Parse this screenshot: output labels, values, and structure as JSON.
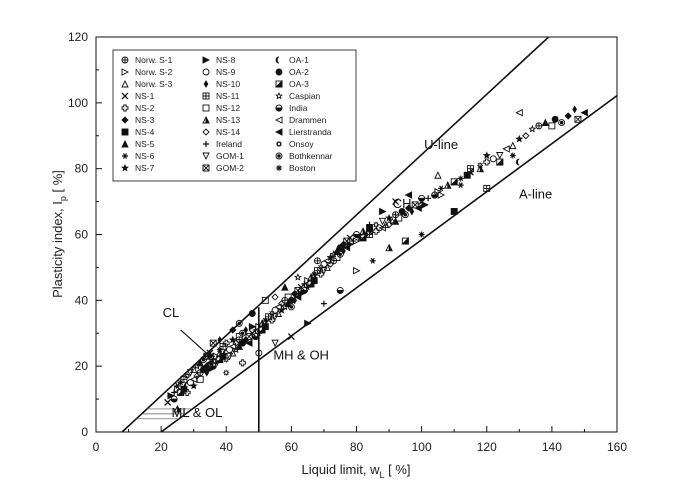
{
  "chart_data": {
    "type": "scatter",
    "title": "",
    "xlabel": {
      "main": "Liquid limit, w",
      "sub": "L",
      "unit": " [ %]"
    },
    "ylabel": {
      "main": "Plasticity index, I",
      "sub": "p",
      "unit": " [ %]"
    },
    "xlim": [
      0,
      160
    ],
    "ylim": [
      0,
      120
    ],
    "x_ticks": [
      "0",
      "20",
      "40",
      "60",
      "80",
      "100",
      "120",
      "140",
      "160"
    ],
    "y_ticks": [
      "0",
      "20",
      "40",
      "60",
      "80",
      "100",
      "120"
    ],
    "grid": false,
    "legend_position": "top-left",
    "reference_lines": [
      {
        "name": "U-line",
        "points": [
          [
            8,
            0
          ],
          [
            139,
            120
          ]
        ]
      },
      {
        "name": "A-line",
        "points": [
          [
            20,
            0
          ],
          [
            160,
            102.2
          ]
        ]
      },
      {
        "name": "wL = 50",
        "points": [
          [
            50,
            0
          ],
          [
            50,
            37.9
          ]
        ]
      }
    ],
    "annotations": [
      {
        "text": "U-line",
        "x": 106,
        "y": 86
      },
      {
        "text": "A-line",
        "x": 135,
        "y": 71
      },
      {
        "text": "CH",
        "x": 94,
        "y": 68
      },
      {
        "text": "CL",
        "x": 23,
        "y": 35
      },
      {
        "text": "MH & OH",
        "x": 63,
        "y": 22
      },
      {
        "text": "ML & OL",
        "x": 31,
        "y": 4.5
      }
    ],
    "cl_pointer": {
      "from": [
        26,
        31
      ],
      "to": [
        35,
        23
      ]
    },
    "legend_columns": [
      [
        "Norw. S-1",
        "Norw. S-2",
        "Norw. S-3",
        "NS-1",
        "NS-2",
        "NS-3",
        "NS-4",
        "NS-5",
        "NS-6",
        "NS-7"
      ],
      [
        "NS-8",
        "NS-9",
        "NS-10",
        "NS-11",
        "NS-12",
        "NS-13",
        "NS-14",
        "Ireland",
        "GOM-1",
        "GOM-2"
      ],
      [
        "OA-1",
        "OA-2",
        "OA-3",
        "Caspian",
        "India",
        "Drammen",
        "Lierstranda",
        "Onsoy",
        "Bothkennar",
        "Boston"
      ]
    ],
    "legend_markers": [
      [
        "circle-cross",
        "triangle-right-open",
        "triangle-up-open",
        "x",
        "plus-open",
        "diamond-filled",
        "square-filled",
        "triangle-up-filled",
        "star-six",
        "star-filled"
      ],
      [
        "triangle-right-filled",
        "circle-open",
        "diamond-small",
        "square-grid",
        "square-open",
        "triangle-half",
        "diamond-open",
        "plus",
        "triangle-down-open",
        "square-x"
      ],
      [
        "crescent",
        "circle-filled",
        "square-half",
        "star-open",
        "circle-half",
        "triangle-left-open",
        "triangle-left-filled",
        "sun",
        "circle-dot",
        "asterisk"
      ]
    ],
    "series": [
      {
        "name": "Observations",
        "points": [
          [
            22,
            9
          ],
          [
            23,
            11
          ],
          [
            24,
            12
          ],
          [
            24,
            10
          ],
          [
            25,
            13
          ],
          [
            25,
            14
          ],
          [
            25,
            7
          ],
          [
            26,
            12
          ],
          [
            26,
            15
          ],
          [
            27,
            13
          ],
          [
            27,
            16
          ],
          [
            28,
            14
          ],
          [
            28,
            17
          ],
          [
            28,
            12
          ],
          [
            29,
            15
          ],
          [
            29,
            18
          ],
          [
            30,
            16
          ],
          [
            30,
            19
          ],
          [
            30,
            14
          ],
          [
            31,
            17
          ],
          [
            31,
            20
          ],
          [
            32,
            18
          ],
          [
            32,
            21
          ],
          [
            32,
            16
          ],
          [
            33,
            19
          ],
          [
            33,
            22
          ],
          [
            34,
            20
          ],
          [
            34,
            18
          ],
          [
            34,
            23
          ],
          [
            35,
            21
          ],
          [
            35,
            24
          ],
          [
            35,
            19
          ],
          [
            36,
            22
          ],
          [
            36,
            20
          ],
          [
            37,
            23
          ],
          [
            37,
            21
          ],
          [
            38,
            24
          ],
          [
            38,
            22
          ],
          [
            38,
            25
          ],
          [
            39,
            23
          ],
          [
            39,
            26
          ],
          [
            40,
            24
          ],
          [
            40,
            22
          ],
          [
            40,
            27
          ],
          [
            41,
            25
          ],
          [
            41,
            23
          ],
          [
            42,
            26
          ],
          [
            42,
            24
          ],
          [
            42,
            28
          ],
          [
            43,
            27
          ],
          [
            43,
            25
          ],
          [
            44,
            28
          ],
          [
            44,
            26
          ],
          [
            44,
            29
          ],
          [
            45,
            27
          ],
          [
            45,
            30
          ],
          [
            46,
            28
          ],
          [
            46,
            31
          ],
          [
            47,
            29
          ],
          [
            47,
            27
          ],
          [
            48,
            30
          ],
          [
            48,
            32
          ],
          [
            49,
            31
          ],
          [
            49,
            29
          ],
          [
            50,
            32
          ],
          [
            50,
            30
          ],
          [
            51,
            33
          ],
          [
            51,
            31
          ],
          [
            52,
            34
          ],
          [
            52,
            32
          ],
          [
            53,
            35
          ],
          [
            53,
            33
          ],
          [
            54,
            36
          ],
          [
            54,
            34
          ],
          [
            55,
            37
          ],
          [
            55,
            35
          ],
          [
            56,
            38
          ],
          [
            56,
            36
          ],
          [
            57,
            37
          ],
          [
            57,
            39
          ],
          [
            58,
            38
          ],
          [
            58,
            40
          ],
          [
            59,
            39
          ],
          [
            59,
            41
          ],
          [
            60,
            40
          ],
          [
            60,
            38
          ],
          [
            61,
            42
          ],
          [
            61,
            40
          ],
          [
            62,
            43
          ],
          [
            62,
            41
          ],
          [
            63,
            44
          ],
          [
            63,
            42
          ],
          [
            64,
            45
          ],
          [
            64,
            43
          ],
          [
            65,
            46
          ],
          [
            65,
            44
          ],
          [
            66,
            47
          ],
          [
            66,
            45
          ],
          [
            67,
            48
          ],
          [
            67,
            46
          ],
          [
            68,
            49
          ],
          [
            68,
            47
          ],
          [
            69,
            50
          ],
          [
            69,
            48
          ],
          [
            70,
            51
          ],
          [
            70,
            49
          ],
          [
            71,
            52
          ],
          [
            71,
            50
          ],
          [
            72,
            53
          ],
          [
            72,
            51
          ],
          [
            73,
            54
          ],
          [
            73,
            52
          ],
          [
            74,
            55
          ],
          [
            74,
            53
          ],
          [
            75,
            56
          ],
          [
            75,
            54
          ],
          [
            76,
            57
          ],
          [
            76,
            55
          ],
          [
            77,
            58
          ],
          [
            77,
            56
          ],
          [
            78,
            59
          ],
          [
            78,
            57
          ],
          [
            79,
            58
          ],
          [
            80,
            60
          ],
          [
            80,
            58
          ],
          [
            81,
            59
          ],
          [
            82,
            61
          ],
          [
            82,
            59
          ],
          [
            83,
            60
          ],
          [
            84,
            62
          ],
          [
            84,
            60
          ],
          [
            85,
            61
          ],
          [
            86,
            63
          ],
          [
            86,
            61
          ],
          [
            87,
            62
          ],
          [
            88,
            64
          ],
          [
            88,
            62
          ],
          [
            89,
            63
          ],
          [
            90,
            65
          ],
          [
            90,
            63
          ],
          [
            91,
            64
          ],
          [
            92,
            66
          ],
          [
            92,
            64
          ],
          [
            93,
            65
          ],
          [
            94,
            67
          ],
          [
            95,
            66
          ],
          [
            96,
            68
          ],
          [
            97,
            67
          ],
          [
            98,
            69
          ],
          [
            99,
            68
          ],
          [
            100,
            70
          ],
          [
            101,
            69
          ],
          [
            102,
            71
          ],
          [
            104,
            72
          ],
          [
            105,
            73
          ],
          [
            106,
            74
          ],
          [
            108,
            75
          ],
          [
            110,
            76
          ],
          [
            112,
            77
          ],
          [
            114,
            78
          ],
          [
            115,
            80
          ],
          [
            116,
            79
          ],
          [
            118,
            81
          ],
          [
            120,
            82
          ],
          [
            122,
            83
          ],
          [
            124,
            84
          ],
          [
            126,
            86
          ],
          [
            128,
            87
          ],
          [
            130,
            89
          ],
          [
            132,
            90
          ],
          [
            134,
            92
          ],
          [
            136,
            93
          ],
          [
            138,
            94
          ],
          [
            140,
            93
          ],
          [
            141,
            95
          ],
          [
            143,
            94
          ],
          [
            145,
            96
          ],
          [
            147,
            98
          ],
          [
            148,
            95
          ],
          [
            150,
            97
          ],
          [
            60,
            29
          ],
          [
            65,
            33
          ],
          [
            70,
            39
          ],
          [
            75,
            43
          ],
          [
            80,
            49
          ],
          [
            85,
            52
          ],
          [
            90,
            56
          ],
          [
            95,
            58
          ],
          [
            100,
            60
          ],
          [
            110,
            67
          ],
          [
            120,
            74
          ],
          [
            130,
            82
          ],
          [
            40,
            18
          ],
          [
            45,
            21
          ],
          [
            50,
            24
          ],
          [
            55,
            27
          ],
          [
            130,
            97
          ],
          [
            105,
            78
          ],
          [
            120,
            84
          ],
          [
            55,
            41
          ],
          [
            62,
            47
          ],
          [
            68,
            52
          ],
          [
            58,
            44
          ],
          [
            52,
            40
          ],
          [
            48,
            36
          ],
          [
            44,
            33
          ],
          [
            42,
            31
          ],
          [
            38,
            28
          ],
          [
            36,
            27
          ],
          [
            96,
            72
          ],
          [
            92,
            70
          ],
          [
            88,
            67
          ],
          [
            84,
            63
          ],
          [
            100,
            71
          ],
          [
            106,
            72
          ],
          [
            112,
            75
          ],
          [
            118,
            80
          ],
          [
            124,
            82
          ],
          [
            128,
            84
          ]
        ]
      }
    ]
  }
}
